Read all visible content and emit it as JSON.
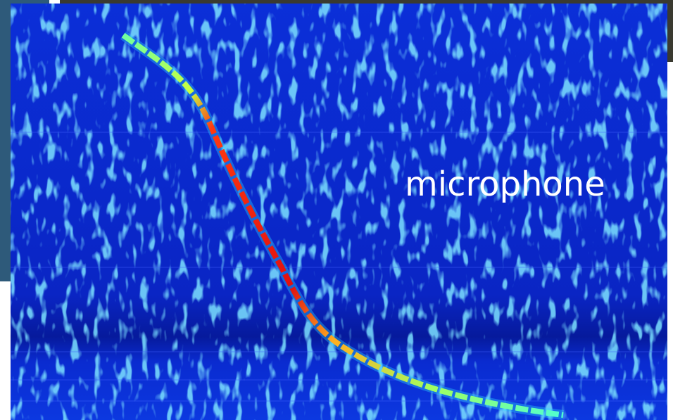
{
  "label": "microphone"
}
